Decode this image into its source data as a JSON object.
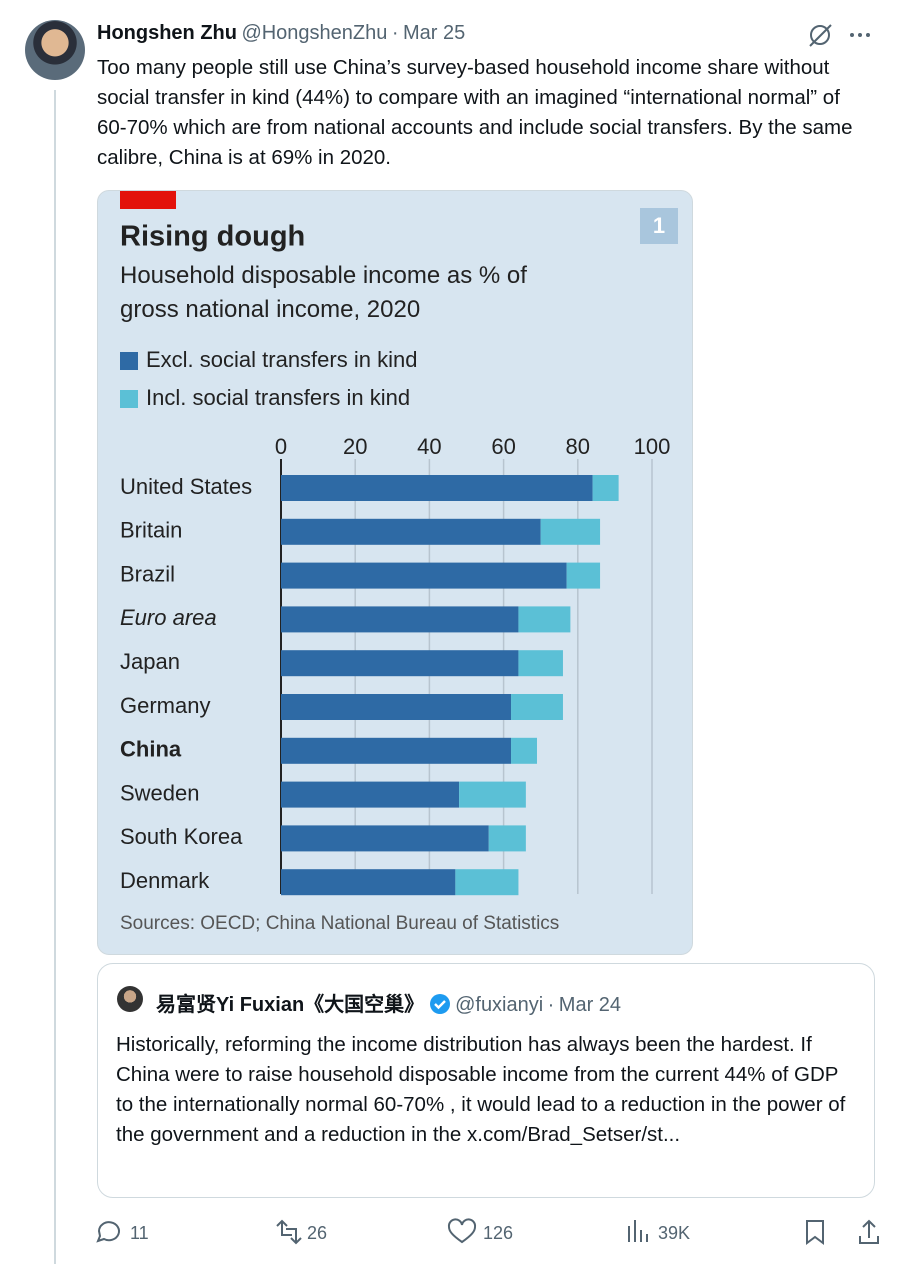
{
  "author": {
    "name": "Hongshen Zhu",
    "handle": "@HongshenZhu",
    "separator": "·",
    "date": "Mar 25"
  },
  "text": "Too many people still use China’s survey-based household income share without social transfer in kind (44%) to compare with an imagined “international normal” of 60-70% which are from national accounts and include social transfers. By the same calibre, China is at 69% in 2020.",
  "chart_data": {
    "type": "stacked_barh",
    "title": "Rising dough",
    "badge": "1",
    "subtitle": "Household disposable income as % of gross national income, 2020",
    "categories": [
      "United States",
      "Britain",
      "Brazil",
      "Euro area",
      "Japan",
      "Germany",
      "China",
      "Sweden",
      "South Korea",
      "Denmark"
    ],
    "series": [
      {
        "name": "Excl. social transfers in kind",
        "color": "#2e6aa5",
        "values": [
          84,
          70,
          77,
          64,
          64,
          62,
          62,
          48,
          56,
          47
        ]
      },
      {
        "name": "Incl. social transfers in kind",
        "color": "#5bc0d6",
        "values": [
          7,
          16,
          9,
          14,
          12,
          14,
          7,
          18,
          10,
          17
        ]
      }
    ],
    "xlim": [
      0,
      100
    ],
    "xticks": [
      0,
      20,
      40,
      60,
      80,
      100
    ],
    "grid": true,
    "source": "Sources: OECD; China National Bureau of Statistics"
  },
  "quote": {
    "name": "易富贤Yi Fuxian《大国空巢》",
    "handle": "@fuxianyi",
    "separator": "·",
    "date": "Mar 24",
    "text": "Historically, reforming the income distribution has always been the hardest.  If China were to raise household disposable income from the current 44%  of GDP to the internationally normal 60-70% , it would lead to a reduction in the power of the government and a reduction in the x.com/Brad_Setser/st..."
  },
  "stats": {
    "replies": "11",
    "reposts": "26",
    "likes": "126",
    "views": "39K"
  }
}
